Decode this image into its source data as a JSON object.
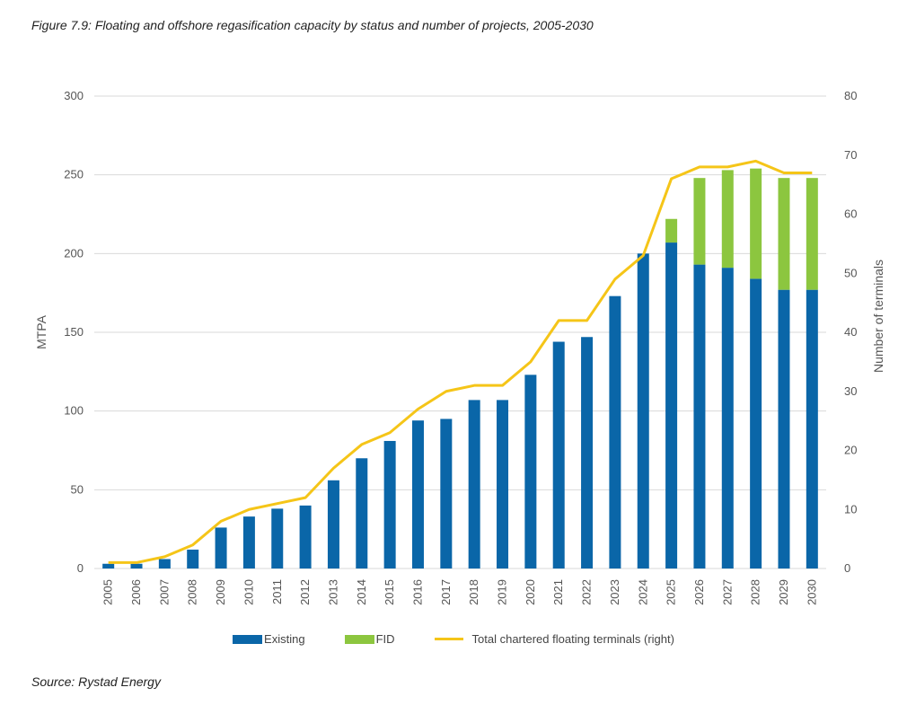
{
  "title": "Figure 7.9: Floating and offshore regasification capacity by status and number of projects, 2005-2030",
  "source": "Source: Rystad Energy",
  "colors": {
    "existing": "#0a66a8",
    "fid": "#8cc63f",
    "line": "#f5c518",
    "grid": "#d9d9d9"
  },
  "chart_data": {
    "type": "bar",
    "stacked": true,
    "categories": [
      "2005",
      "2006",
      "2007",
      "2008",
      "2009",
      "2010",
      "2011",
      "2012",
      "2013",
      "2014",
      "2015",
      "2016",
      "2017",
      "2018",
      "2019",
      "2020",
      "2021",
      "2022",
      "2023",
      "2024",
      "2025",
      "2026",
      "2027",
      "2028",
      "2029",
      "2030"
    ],
    "series": [
      {
        "name": "Existing",
        "axis": "left",
        "type": "bar",
        "values": [
          3,
          3,
          6,
          12,
          26,
          33,
          38,
          40,
          56,
          70,
          81,
          94,
          95,
          107,
          107,
          123,
          144,
          147,
          173,
          200,
          207,
          193,
          191,
          184,
          177,
          177
        ]
      },
      {
        "name": "FID",
        "axis": "left",
        "type": "bar",
        "values": [
          0,
          0,
          0,
          0,
          0,
          0,
          0,
          0,
          0,
          0,
          0,
          0,
          0,
          0,
          0,
          0,
          0,
          0,
          0,
          0,
          15,
          55,
          62,
          70,
          71,
          71
        ]
      },
      {
        "name": "Total chartered floating terminals (right)",
        "axis": "right",
        "type": "line",
        "values": [
          1,
          1,
          2,
          4,
          8,
          10,
          11,
          12,
          17,
          21,
          23,
          27,
          30,
          31,
          31,
          35,
          42,
          42,
          49,
          53,
          66,
          68,
          68,
          69,
          67,
          67
        ]
      }
    ],
    "ylabel": "MTPA",
    "ylim": [
      0,
      300
    ],
    "yticks": [
      "0",
      "50",
      "100",
      "150",
      "200",
      "250",
      "300"
    ],
    "y2label": "Number of terminals",
    "y2lim": [
      0,
      80
    ],
    "y2ticks": [
      "0",
      "10",
      "20",
      "30",
      "40",
      "50",
      "60",
      "70",
      "80"
    ],
    "grid": true,
    "legend_position": "bottom"
  }
}
